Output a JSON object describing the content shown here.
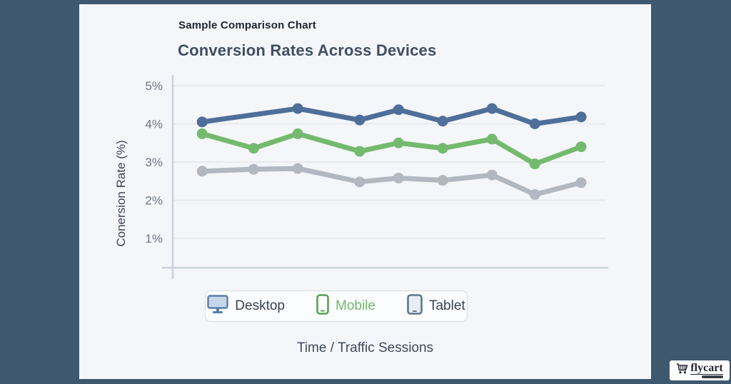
{
  "frame": {
    "background_color": "#3e586f",
    "card_background": "#f5f6f9"
  },
  "header": {
    "subtitle": "Sample Comparison Chart",
    "title": "Conversion Rates Across Devices"
  },
  "chart_data": {
    "type": "line",
    "title": "Conversion Rates Across Devices",
    "xlabel": "Time / Traffic Sessions",
    "ylabel": "Conersion Rate (%)",
    "ylim": [
      0,
      5.5
    ],
    "x_tick_labels": [],
    "grid": true,
    "grid_color": "#e7eaef",
    "axis_color": "#ccd2db",
    "tick_color": "#6e7787",
    "legend_position": "bottom",
    "yticks": [
      {
        "value": 5,
        "label": "5%"
      },
      {
        "value": 4,
        "label": "4%"
      },
      {
        "value": 3,
        "label": "3%"
      },
      {
        "value": 2,
        "label": "2%"
      },
      {
        "value": 1,
        "label": "1%"
      }
    ],
    "series": [
      {
        "name": "Desktop",
        "color": "#4e6f99",
        "points": [
          {
            "x": 0.068,
            "v": 4.05
          },
          {
            "x": 0.289,
            "v": 4.4
          },
          {
            "x": 0.432,
            "v": 4.1
          },
          {
            "x": 0.522,
            "v": 4.37
          },
          {
            "x": 0.624,
            "v": 4.07
          },
          {
            "x": 0.738,
            "v": 4.4
          },
          {
            "x": 0.837,
            "v": 4.0
          },
          {
            "x": 0.944,
            "v": 4.18
          }
        ]
      },
      {
        "name": "Mobile",
        "color": "#74ba6e",
        "points": [
          {
            "x": 0.068,
            "v": 3.74
          },
          {
            "x": 0.187,
            "v": 3.36
          },
          {
            "x": 0.289,
            "v": 3.74
          },
          {
            "x": 0.432,
            "v": 3.28
          },
          {
            "x": 0.522,
            "v": 3.5
          },
          {
            "x": 0.624,
            "v": 3.36
          },
          {
            "x": 0.738,
            "v": 3.6
          },
          {
            "x": 0.837,
            "v": 2.95
          },
          {
            "x": 0.944,
            "v": 3.4
          }
        ]
      },
      {
        "name": "Tablet",
        "color": "#b2b7c0",
        "points": [
          {
            "x": 0.068,
            "v": 2.76
          },
          {
            "x": 0.187,
            "v": 2.81
          },
          {
            "x": 0.289,
            "v": 2.83
          },
          {
            "x": 0.432,
            "v": 2.48
          },
          {
            "x": 0.522,
            "v": 2.58
          },
          {
            "x": 0.624,
            "v": 2.52
          },
          {
            "x": 0.738,
            "v": 2.66
          },
          {
            "x": 0.837,
            "v": 2.15
          },
          {
            "x": 0.944,
            "v": 2.46
          }
        ]
      }
    ]
  },
  "legend": {
    "items": [
      {
        "label": "Desktop",
        "icon": "monitor-icon",
        "label_color": "#3a4252"
      },
      {
        "label": "Mobile",
        "icon": "smartphone-icon",
        "label_color": "#71b86b"
      },
      {
        "label": "Tablet",
        "icon": "tablet-icon",
        "label_color": "#3a4252"
      }
    ]
  },
  "footer_logo": {
    "text": "flycart"
  }
}
